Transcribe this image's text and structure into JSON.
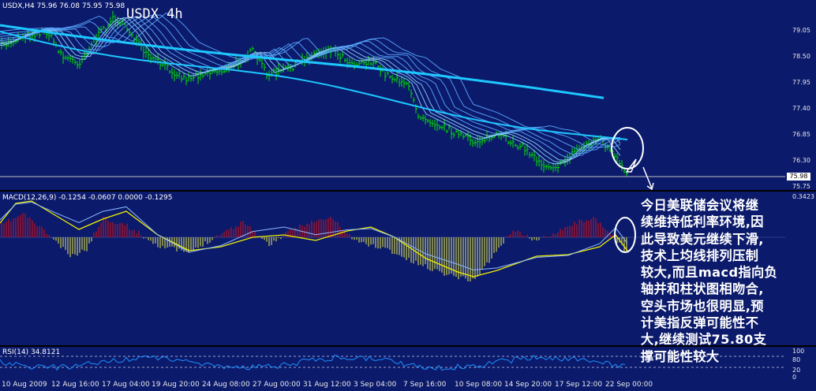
{
  "header": {
    "symbol_line": "USDX,H4  75.96 76.08 75.95 75.98",
    "chart_title": "USDX 4h"
  },
  "price_axis": [
    "79.05",
    "78.50",
    "77.95",
    "77.40",
    "76.85",
    "76.30",
    "75.75"
  ],
  "current_price": "75.98",
  "macd": {
    "label": "MACD(12,26,9) -0.1254 -0.0607 0.0000 -0.1295",
    "top_value": "0.3423"
  },
  "rsi": {
    "label": "RSI(14) 34.8121",
    "levels": [
      "100",
      "80",
      "20",
      "0"
    ]
  },
  "time_axis": [
    "10 Aug 2009",
    "12 Aug 16:00",
    "17 Aug 04:00",
    "19 Aug 20:00",
    "24 Aug 08:00",
    "27 Aug 00:00",
    "31 Aug 12:00",
    "3 Sep 04:00",
    "7 Sep 16:00",
    "10 Sep 08:00",
    "14 Sep 20:00",
    "17 Sep 12:00",
    "22 Sep 00:00"
  ],
  "annotation": [
    "今日美联储会议将继",
    "续维持低利率环境,因",
    "此导致美元继续下滑,",
    "技术上均线排列压制",
    "较大,而且macd指向负",
    "轴并和柱状图相吻合,",
    "空头市场也很明显,预",
    "计美指反弹可能性不",
    "大,继续测试75.80支",
    "撑可能性较大"
  ],
  "colors": {
    "background": "#0b1a6b",
    "candle": "#00e600",
    "ma_slow": "#1ec8ff",
    "macd_pos": "#e01010",
    "macd_neg": "#f0f040",
    "signal": "#f0f000",
    "rsi_line": "#1e90ff"
  }
}
